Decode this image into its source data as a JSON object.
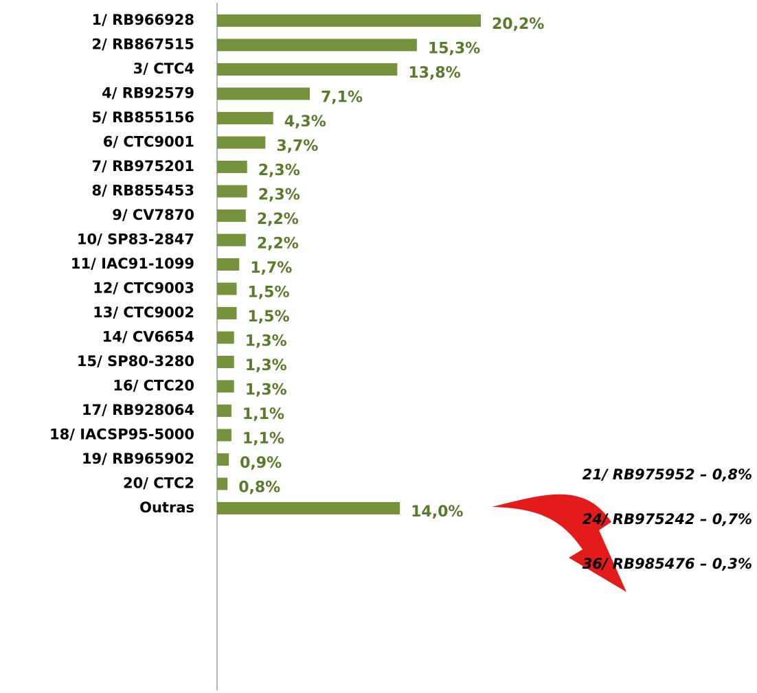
{
  "chart_data": {
    "type": "hbar",
    "categories": [
      "1/ RB966928",
      "2/ RB867515",
      "3/ CTC4",
      "4/ RB92579",
      "5/ RB855156",
      "6/ CTC9001",
      "7/ RB975201",
      "8/ RB855453",
      "9/ CV7870",
      "10/ SP83-2847",
      "11/ IAC91-1099",
      "12/ CTC9003",
      "13/ CTC9002",
      "14/ CV6654",
      "15/ SP80-3280",
      "16/ CTC20",
      "17/ RB928064",
      "18/ IACSP95-5000",
      "19/ RB965902",
      "20/ CTC2",
      "Outras"
    ],
    "values": [
      20.2,
      15.3,
      13.8,
      7.1,
      4.3,
      3.7,
      2.3,
      2.3,
      2.2,
      2.2,
      1.7,
      1.5,
      1.5,
      1.3,
      1.3,
      1.3,
      1.1,
      1.1,
      0.9,
      0.8,
      14.0
    ],
    "value_labels": [
      "20,2%",
      "15,3%",
      "13,8%",
      "7,1%",
      "4,3%",
      "3,7%",
      "2,3%",
      "2,3%",
      "2,2%",
      "2,2%",
      "1,7%",
      "1,5%",
      "1,5%",
      "1,3%",
      "1,3%",
      "1,3%",
      "1,1%",
      "1,1%",
      "0,9%",
      "0,8%",
      "14,0%"
    ],
    "color": "#76923c",
    "annotations": [
      "21/ RB975952 – 0,8%",
      "24/ RB975242 – 0,7%",
      "36/ RB985476 – 0,3%"
    ]
  }
}
